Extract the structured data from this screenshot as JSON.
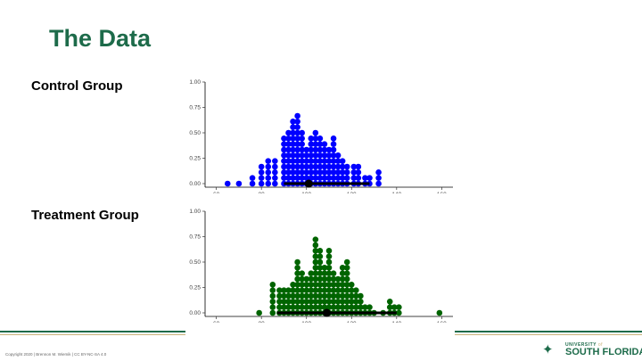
{
  "slide": {
    "title": "The Data"
  },
  "footer": {
    "copyright": "Copyright 2020 | Brennon M. Wiemik | CC BY-NC-SA 4.0",
    "logo": {
      "top_text": "UNIVERSITY",
      "top_suffix": "of",
      "main_text": "SOUTH FLORIDA",
      "icon": "bull-horns-logo-icon"
    }
  },
  "colors": {
    "title": "#1d6b4a",
    "control": "#0000ff",
    "treatment": "#006400",
    "gold": "#c9b27a"
  },
  "chart_data": [
    {
      "type": "scatter",
      "subtype": "dotplot",
      "title": "Control Group",
      "xlim": [
        55,
        165
      ],
      "ylim": [
        0,
        1
      ],
      "x_ticks": [
        "60",
        "80",
        "100",
        "120",
        "140",
        "160"
      ],
      "y_ticks": [
        "0.00",
        "0.25",
        "0.50",
        "0.75",
        "1.00"
      ],
      "dot_color": "#0000ff",
      "bins": [
        65,
        70,
        76,
        80,
        83,
        86,
        90,
        92,
        94,
        96,
        98,
        100,
        102,
        104,
        106,
        108,
        110,
        112,
        114,
        116,
        118,
        121,
        123,
        126,
        128,
        132
      ],
      "counts": [
        1,
        1,
        2,
        4,
        5,
        5,
        9,
        10,
        12,
        13,
        10,
        7,
        9,
        10,
        9,
        8,
        7,
        9,
        6,
        5,
        4,
        4,
        4,
        2,
        2,
        3
      ],
      "summary": {
        "point": 101,
        "interval": [
          90,
          128
        ]
      }
    },
    {
      "type": "scatter",
      "subtype": "dotplot",
      "title": "Treatment Group",
      "xlim": [
        55,
        165
      ],
      "ylim": [
        0,
        1
      ],
      "x_ticks": [
        "60",
        "80",
        "100",
        "120",
        "140",
        "160"
      ],
      "y_ticks": [
        "0.00",
        "0.25",
        "0.50",
        "0.75",
        "1.00"
      ],
      "dot_color": "#006400",
      "bins": [
        79,
        85,
        88,
        90,
        92,
        94,
        96,
        98,
        100,
        102,
        104,
        106,
        108,
        110,
        112,
        114,
        116,
        118,
        120,
        122,
        124,
        126,
        128,
        130,
        134,
        137,
        139,
        141,
        159
      ],
      "counts": [
        1,
        6,
        5,
        5,
        5,
        6,
        10,
        8,
        7,
        8,
        14,
        12,
        9,
        12,
        8,
        7,
        9,
        10,
        6,
        5,
        4,
        2,
        2,
        1,
        1,
        3,
        2,
        2,
        1
      ],
      "summary": {
        "point": 109,
        "interval": [
          87,
          140
        ]
      }
    }
  ]
}
